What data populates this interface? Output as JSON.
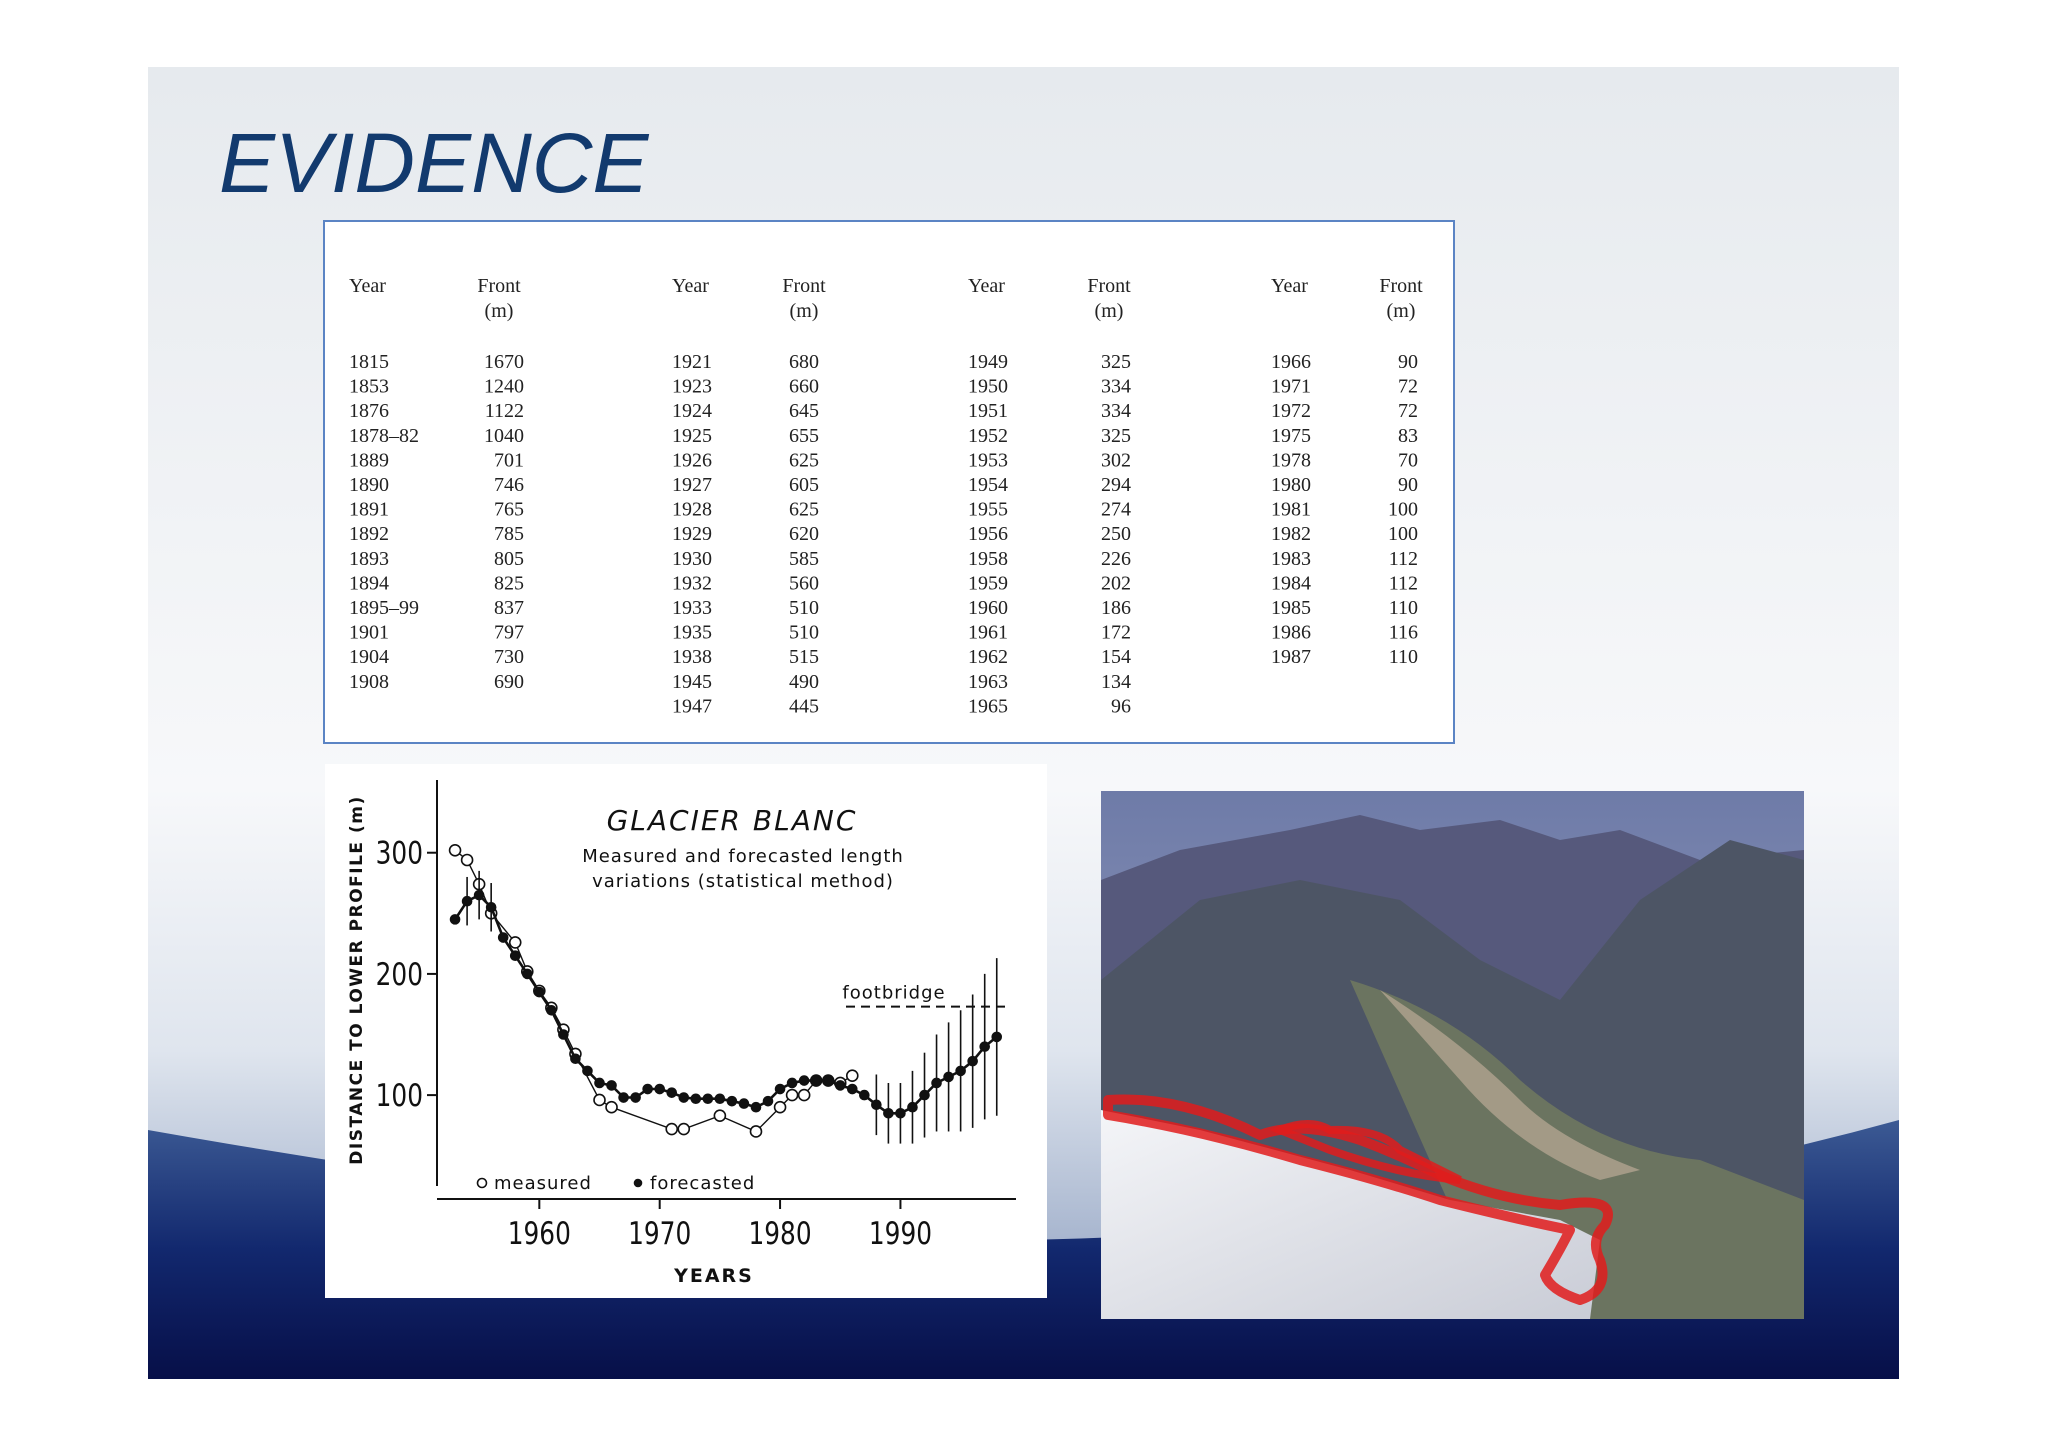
{
  "slide": {
    "title": "EVIDENCE"
  },
  "table": {
    "groups": [
      {
        "year_header": "Year",
        "front_header": "Front",
        "unit": "(m)",
        "rows": [
          [
            "1815",
            "1670"
          ],
          [
            "1853",
            "1240"
          ],
          [
            "1876",
            "1122"
          ],
          [
            "1878–82",
            "1040"
          ],
          [
            "1889",
            "701"
          ],
          [
            "1890",
            "746"
          ],
          [
            "1891",
            "765"
          ],
          [
            "1892",
            "785"
          ],
          [
            "1893",
            "805"
          ],
          [
            "1894",
            "825"
          ],
          [
            "1895–99",
            "837"
          ],
          [
            "1901",
            "797"
          ],
          [
            "1904",
            "730"
          ],
          [
            "1908",
            "690"
          ]
        ]
      },
      {
        "year_header": "Year",
        "front_header": "Front",
        "unit": "(m)",
        "rows": [
          [
            "1921",
            "680"
          ],
          [
            "1923",
            "660"
          ],
          [
            "1924",
            "645"
          ],
          [
            "1925",
            "655"
          ],
          [
            "1926",
            "625"
          ],
          [
            "1927",
            "605"
          ],
          [
            "1928",
            "625"
          ],
          [
            "1929",
            "620"
          ],
          [
            "1930",
            "585"
          ],
          [
            "1932",
            "560"
          ],
          [
            "1933",
            "510"
          ],
          [
            "1935",
            "510"
          ],
          [
            "1938",
            "515"
          ],
          [
            "1945",
            "490"
          ],
          [
            "1947",
            "445"
          ]
        ]
      },
      {
        "year_header": "Year",
        "front_header": "Front",
        "unit": "(m)",
        "rows": [
          [
            "1949",
            "325"
          ],
          [
            "1950",
            "334"
          ],
          [
            "1951",
            "334"
          ],
          [
            "1952",
            "325"
          ],
          [
            "1953",
            "302"
          ],
          [
            "1954",
            "294"
          ],
          [
            "1955",
            "274"
          ],
          [
            "1956",
            "250"
          ],
          [
            "1958",
            "226"
          ],
          [
            "1959",
            "202"
          ],
          [
            "1960",
            "186"
          ],
          [
            "1961",
            "172"
          ],
          [
            "1962",
            "154"
          ],
          [
            "1963",
            "134"
          ],
          [
            "1965",
            "96"
          ]
        ]
      },
      {
        "year_header": "Year",
        "front_header": "Front",
        "unit": "(m)",
        "rows": [
          [
            "1966",
            "90"
          ],
          [
            "1971",
            "72"
          ],
          [
            "1972",
            "72"
          ],
          [
            "1975",
            "83"
          ],
          [
            "1978",
            "70"
          ],
          [
            "1980",
            "90"
          ],
          [
            "1981",
            "100"
          ],
          [
            "1982",
            "100"
          ],
          [
            "1983",
            "112"
          ],
          [
            "1984",
            "112"
          ],
          [
            "1985",
            "110"
          ],
          [
            "1986",
            "116"
          ],
          [
            "1987",
            "110"
          ]
        ]
      }
    ]
  },
  "figure": {
    "type": "line",
    "title": "GLACIER BLANC",
    "subtitle": [
      "Measured and forecasted length",
      "variations (statistical method)"
    ],
    "xlabel": "YEARS",
    "ylabel": "DISTANCE TO LOWER PROFILE (m)",
    "xlim": [
      1951.5,
      1999.6
    ],
    "ylim": [
      25,
      360
    ],
    "xticks": [
      1960,
      1970,
      1980,
      1990
    ],
    "yticks": [
      100,
      200,
      300
    ],
    "footbridge": {
      "label": "footbridge",
      "value": 173
    },
    "series": [
      {
        "name": "measured",
        "x": [
          1953,
          1954,
          1955,
          1956,
          1958,
          1959,
          1960,
          1961,
          1962,
          1963,
          1965,
          1966,
          1971,
          1972,
          1975,
          1978,
          1980,
          1981,
          1982,
          1983,
          1984,
          1985,
          1986
        ],
        "values": [
          302,
          294,
          274,
          250,
          226,
          202,
          186,
          172,
          154,
          134,
          96,
          90,
          72,
          72,
          83,
          70,
          90,
          100,
          100,
          112,
          112,
          110,
          116
        ]
      },
      {
        "name": "forecasted",
        "x": [
          1953,
          1954,
          1955,
          1956,
          1957,
          1958,
          1959,
          1960,
          1961,
          1962,
          1963,
          1964,
          1965,
          1966,
          1967,
          1968,
          1969,
          1970,
          1971,
          1972,
          1973,
          1974,
          1975,
          1976,
          1977,
          1978,
          1979,
          1980,
          1981,
          1982,
          1983,
          1984,
          1985,
          1986,
          1987,
          1988,
          1989,
          1990,
          1991,
          1992,
          1993,
          1994,
          1995,
          1996,
          1997,
          1998
        ],
        "values": [
          245,
          260,
          265,
          255,
          230,
          215,
          200,
          185,
          170,
          150,
          130,
          120,
          110,
          108,
          98,
          98,
          105,
          105,
          102,
          98,
          97,
          97,
          97,
          95,
          93,
          90,
          95,
          105,
          110,
          112,
          112,
          112,
          108,
          105,
          100,
          92,
          85,
          85,
          90,
          100,
          110,
          115,
          120,
          128,
          140,
          148
        ],
        "errors": [
          null,
          20,
          20,
          20,
          null,
          null,
          null,
          null,
          null,
          null,
          null,
          null,
          null,
          null,
          null,
          null,
          null,
          null,
          null,
          null,
          null,
          null,
          null,
          null,
          null,
          null,
          null,
          null,
          null,
          null,
          null,
          null,
          null,
          null,
          null,
          25,
          25,
          25,
          30,
          35,
          40,
          45,
          50,
          55,
          60,
          65
        ]
      }
    ]
  }
}
